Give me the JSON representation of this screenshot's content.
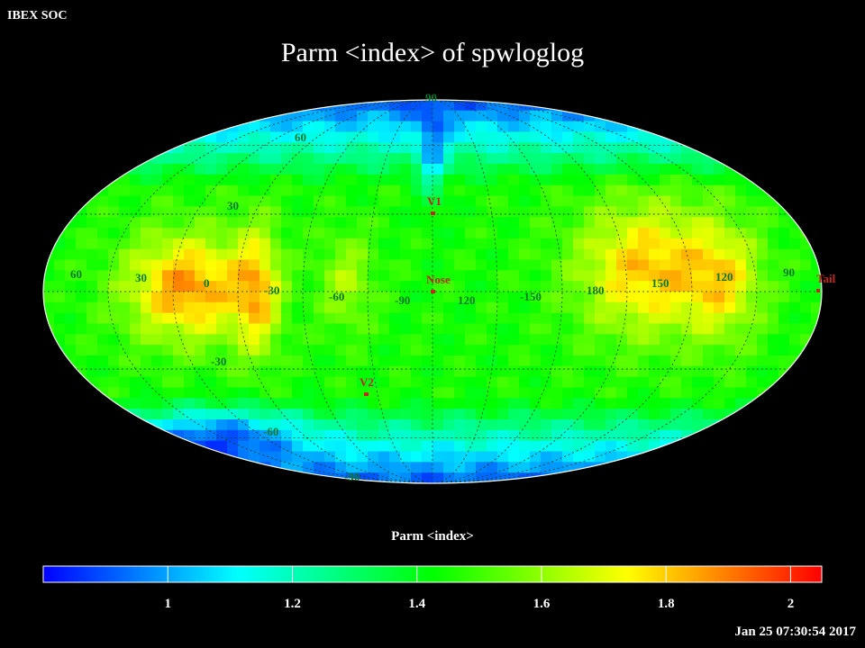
{
  "header": {
    "corner_label": "IBEX SOC",
    "title": "Parm  <index> of spwloglog"
  },
  "map": {
    "projection": "mollweide",
    "lon_labels": [
      "60",
      "30",
      "0",
      "-30",
      "-60",
      "-90",
      "120",
      "-150",
      "180",
      "150",
      "120",
      "90"
    ],
    "lat_labels": [
      "90",
      "60",
      "30",
      "-30",
      "-60",
      "-90"
    ],
    "markers": [
      {
        "name": "v1-marker",
        "label": "V1",
        "color": "#c0281e"
      },
      {
        "name": "nose-marker",
        "label": "Nose",
        "color": "#c0281e"
      },
      {
        "name": "v2-marker",
        "label": "V2",
        "color": "#c0281e"
      },
      {
        "name": "tail-marker",
        "label": "Tail",
        "color": "#c0281e"
      }
    ],
    "label_color": "#0a7a2a"
  },
  "colorbar": {
    "label": "Parm  <index>",
    "range": [
      0.8,
      2.05
    ],
    "ticks": [
      "1",
      "1.2",
      "1.4",
      "1.6",
      "1.8",
      "2"
    ],
    "tick_values": [
      1,
      1.2,
      1.4,
      1.6,
      1.8,
      2
    ],
    "colors": [
      "#0000ff",
      "#0080ff",
      "#00ffff",
      "#00ff80",
      "#00ff00",
      "#80ff00",
      "#ffff00",
      "#ff8000",
      "#ff0000"
    ]
  },
  "footer": {
    "timestamp": "Jan 25 07:30:54 2017"
  }
}
